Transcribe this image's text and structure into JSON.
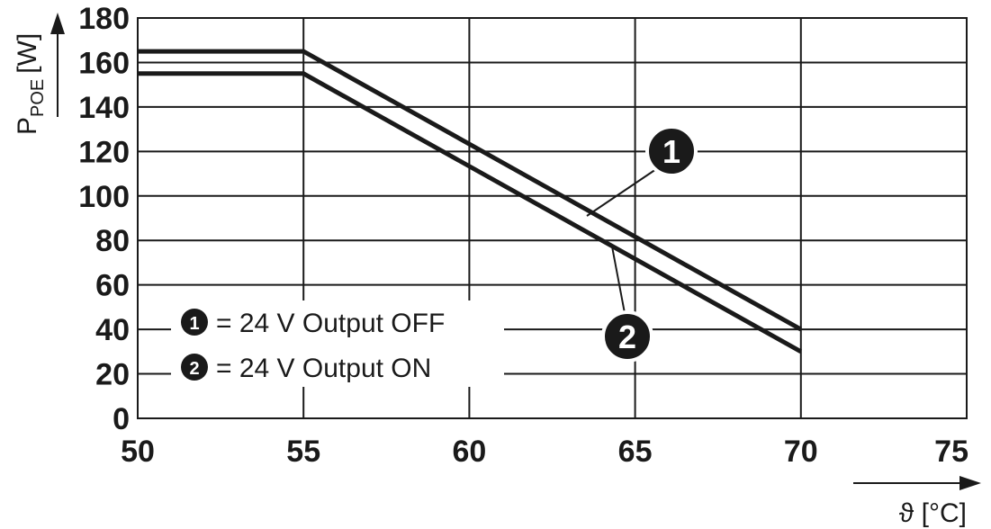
{
  "chart_data": {
    "type": "line",
    "xlabel": "ϑ [°C]",
    "ylabel": {
      "main": "P",
      "sub": "POE",
      "unit": "[W]"
    },
    "xlim": [
      50,
      75
    ],
    "ylim": [
      0,
      180
    ],
    "x_ticks": [
      "50",
      "55",
      "60",
      "65",
      "70",
      "75"
    ],
    "y_ticks": [
      "0",
      "20",
      "40",
      "60",
      "80",
      "100",
      "120",
      "140",
      "160",
      "180"
    ],
    "grid": true,
    "series": [
      {
        "marker": "1",
        "x": [
          50,
          55,
          70
        ],
        "y": [
          165,
          165,
          40
        ]
      },
      {
        "marker": "2",
        "x": [
          50,
          55,
          70
        ],
        "y": [
          155,
          155,
          30
        ]
      }
    ],
    "legend": [
      {
        "marker": "1",
        "label": "= 24 V Output OFF"
      },
      {
        "marker": "2",
        "label": "= 24 V Output ON"
      }
    ],
    "colors": {
      "line": "#1a1a1a",
      "grid": "#1a1a1a",
      "background": "#ffffff"
    }
  }
}
